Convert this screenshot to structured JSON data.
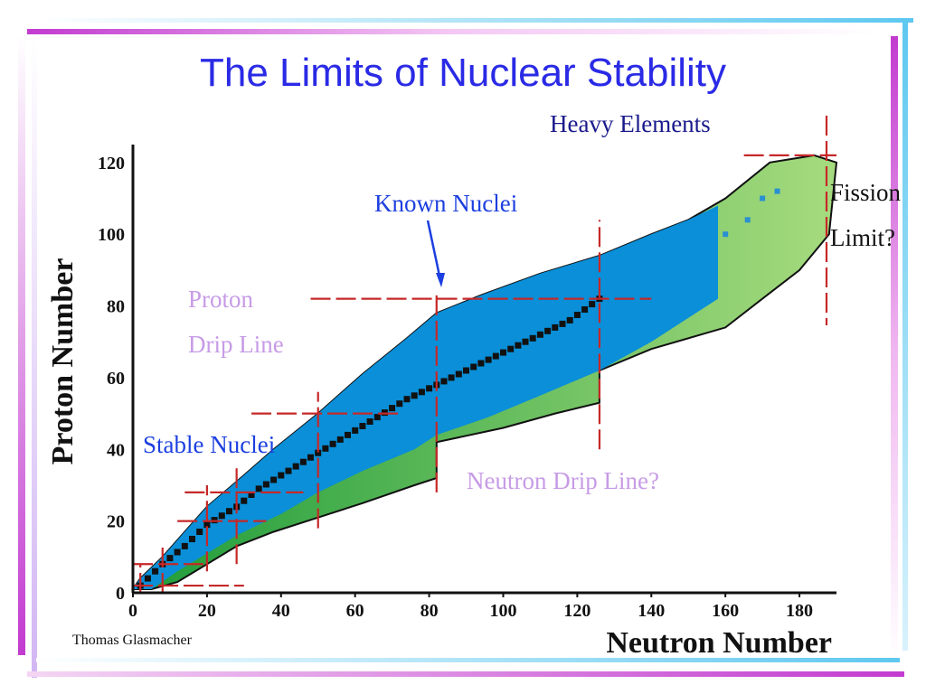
{
  "slide": {
    "title": "The Limits of Nuclear Stability",
    "author": "Thomas Glasmacher"
  },
  "annotations": {
    "heavy_elements": "Heavy Elements",
    "known_nuclei": "Known Nuclei",
    "fission_line1": "Fission",
    "fission_line2": "Limit?",
    "proton_line1": "Proton",
    "proton_line2": "Drip Line",
    "stable_nuclei": "Stable Nuclei",
    "neutron_drip": "Neutron Drip Line?"
  },
  "colors": {
    "title": "#2a2ae6",
    "known_nuclei_fill": "#0a8fd8",
    "predicted_fill": "#5fbf4a",
    "stable_nuclei": "#111111",
    "magic_lines": "#c62828",
    "accent_magenta": "#c23bd0",
    "accent_cyan": "#5ec8f0"
  },
  "chart_data": {
    "type": "area",
    "xlabel": "Neutron Number",
    "ylabel": "Proton Number",
    "xlim": [
      0,
      190
    ],
    "ylim": [
      0,
      125
    ],
    "xticks": [
      0,
      20,
      40,
      60,
      80,
      100,
      120,
      140,
      160,
      180
    ],
    "yticks": [
      0,
      20,
      40,
      60,
      80,
      100,
      120
    ],
    "magic_numbers": [
      2,
      8,
      20,
      28,
      50,
      82,
      126
    ],
    "stable_valley": [
      [
        2,
        2
      ],
      [
        8,
        8
      ],
      [
        14,
        13
      ],
      [
        20,
        19
      ],
      [
        28,
        24
      ],
      [
        34,
        29
      ],
      [
        42,
        34
      ],
      [
        50,
        39
      ],
      [
        58,
        44
      ],
      [
        66,
        49
      ],
      [
        74,
        54
      ],
      [
        82,
        58
      ],
      [
        90,
        62
      ],
      [
        100,
        67
      ],
      [
        110,
        72
      ],
      [
        118,
        76
      ],
      [
        126,
        82
      ]
    ],
    "known_nuclei_region": {
      "upper": [
        [
          0,
          1
        ],
        [
          2,
          4
        ],
        [
          8,
          10
        ],
        [
          14,
          17
        ],
        [
          20,
          24
        ],
        [
          28,
          31
        ],
        [
          38,
          40
        ],
        [
          50,
          50
        ],
        [
          62,
          61
        ],
        [
          74,
          71
        ],
        [
          82,
          78
        ],
        [
          94,
          83
        ],
        [
          110,
          89
        ],
        [
          126,
          94
        ],
        [
          140,
          100
        ],
        [
          150,
          104
        ],
        [
          158,
          108
        ]
      ],
      "lower": [
        [
          0,
          1
        ],
        [
          5,
          1
        ],
        [
          12,
          6
        ],
        [
          20,
          11
        ],
        [
          28,
          16
        ],
        [
          40,
          22
        ],
        [
          50,
          28
        ],
        [
          62,
          34
        ],
        [
          76,
          40
        ],
        [
          82,
          44
        ],
        [
          96,
          49
        ],
        [
          110,
          55
        ],
        [
          126,
          62
        ],
        [
          140,
          70
        ],
        [
          152,
          78
        ],
        [
          158,
          82
        ]
      ]
    },
    "predicted_region": {
      "upper": [
        [
          0,
          1
        ],
        [
          2,
          4
        ],
        [
          8,
          10
        ],
        [
          14,
          17
        ],
        [
          20,
          24
        ],
        [
          28,
          31
        ],
        [
          38,
          40
        ],
        [
          50,
          50
        ],
        [
          62,
          61
        ],
        [
          74,
          71
        ],
        [
          82,
          78
        ],
        [
          94,
          83
        ],
        [
          110,
          89
        ],
        [
          126,
          94
        ],
        [
          140,
          100
        ],
        [
          150,
          104
        ],
        [
          160,
          110
        ],
        [
          172,
          120
        ],
        [
          184,
          122
        ]
      ],
      "lower": [
        [
          0,
          1
        ],
        [
          5,
          1
        ],
        [
          12,
          3
        ],
        [
          20,
          8
        ],
        [
          28,
          13
        ],
        [
          38,
          17
        ],
        [
          50,
          21
        ],
        [
          62,
          25
        ],
        [
          76,
          30
        ],
        [
          82,
          32
        ],
        [
          82,
          42
        ],
        [
          100,
          46
        ],
        [
          114,
          50
        ],
        [
          126,
          53
        ],
        [
          126,
          62
        ],
        [
          140,
          68
        ],
        [
          160,
          74
        ],
        [
          170,
          82
        ],
        [
          180,
          90
        ],
        [
          188,
          100
        ],
        [
          190,
          120
        ],
        [
          184,
          122
        ]
      ]
    },
    "heavy_elements_island": [
      [
        160,
        100
      ],
      [
        166,
        104
      ],
      [
        170,
        110
      ],
      [
        174,
        112
      ]
    ]
  }
}
